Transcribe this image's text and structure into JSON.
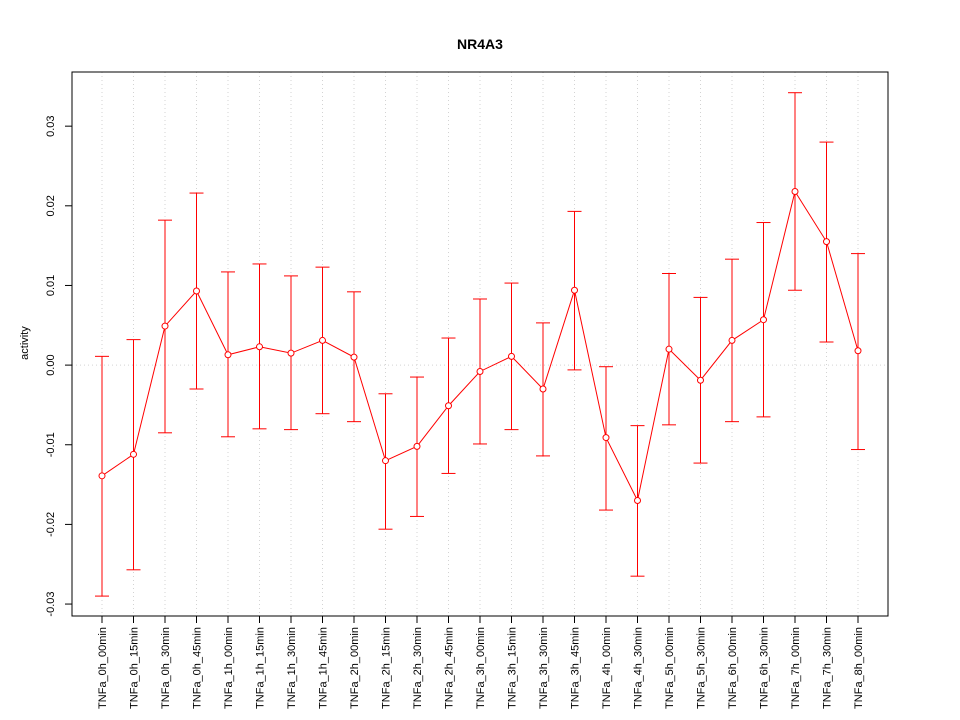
{
  "chart_data": {
    "type": "line",
    "title": "NR4A3",
    "ylabel": "activity",
    "xlabel": "",
    "ylim": [
      -0.0315,
      0.0368
    ],
    "yticks": [
      -0.03,
      -0.02,
      -0.01,
      0.0,
      0.01,
      0.02,
      0.03
    ],
    "ytick_labels": [
      "-0.03",
      "-0.02",
      "-0.01",
      "0.00",
      "0.01",
      "0.02",
      "0.03"
    ],
    "categories": [
      "TNFa_0h_00min",
      "TNFa_0h_15min",
      "TNFa_0h_30min",
      "TNFa_0h_45min",
      "TNFa_1h_00min",
      "TNFa_1h_15min",
      "TNFa_1h_30min",
      "TNFa_1h_45min",
      "TNFa_2h_00min",
      "TNFa_2h_15min",
      "TNFa_2h_30min",
      "TNFa_2h_45min",
      "TNFa_3h_00min",
      "TNFa_3h_15min",
      "TNFa_3h_30min",
      "TNFa_3h_45min",
      "TNFa_4h_00min",
      "TNFa_4h_30min",
      "TNFa_5h_00min",
      "TNFa_5h_30min",
      "TNFa_6h_00min",
      "TNFa_6h_30min",
      "TNFa_7h_00min",
      "TNFa_7h_30min",
      "TNFa_8h_00min"
    ],
    "series": [
      {
        "values": [
          -0.0139,
          -0.0112,
          0.0049,
          0.0093,
          0.0013,
          0.0023,
          0.0015,
          0.0031,
          0.001,
          -0.012,
          -0.0102,
          -0.0051,
          -0.0008,
          0.0011,
          -0.003,
          0.0094,
          -0.0091,
          -0.017,
          0.002,
          -0.0019,
          0.0031,
          0.0057,
          0.0218,
          0.0155,
          0.0018
        ],
        "upper": [
          0.0011,
          0.0032,
          0.0182,
          0.0216,
          0.0117,
          0.0127,
          0.0112,
          0.0123,
          0.0092,
          -0.0036,
          -0.0015,
          0.0034,
          0.0083,
          0.0103,
          0.0053,
          0.0193,
          -0.0002,
          -0.0076,
          0.0115,
          0.0085,
          0.0133,
          0.0179,
          0.0342,
          0.028,
          0.014
        ],
        "lower": [
          -0.029,
          -0.0257,
          -0.0085,
          -0.003,
          -0.009,
          -0.008,
          -0.0081,
          -0.0061,
          -0.0071,
          -0.0206,
          -0.019,
          -0.0136,
          -0.0099,
          -0.0081,
          -0.0114,
          -0.0006,
          -0.0182,
          -0.0265,
          -0.0075,
          -0.0123,
          -0.0071,
          -0.0065,
          0.0094,
          0.0029,
          -0.0106
        ],
        "color": "#ff0000"
      }
    ],
    "grid": true,
    "grid_color": "#d3d3d3",
    "line_color": "#ff0000"
  }
}
